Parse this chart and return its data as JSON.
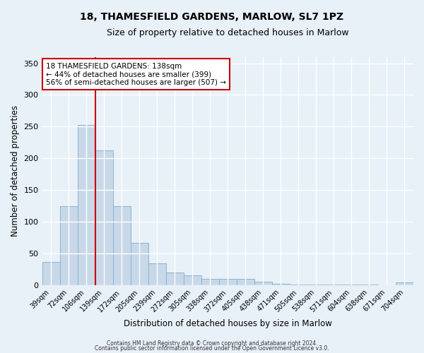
{
  "title": "18, THAMESFIELD GARDENS, MARLOW, SL7 1PZ",
  "subtitle": "Size of property relative to detached houses in Marlow",
  "xlabel": "Distribution of detached houses by size in Marlow",
  "ylabel": "Number of detached properties",
  "categories": [
    "39sqm",
    "72sqm",
    "106sqm",
    "139sqm",
    "172sqm",
    "205sqm",
    "239sqm",
    "272sqm",
    "305sqm",
    "338sqm",
    "372sqm",
    "405sqm",
    "438sqm",
    "471sqm",
    "505sqm",
    "538sqm",
    "571sqm",
    "604sqm",
    "638sqm",
    "671sqm",
    "704sqm"
  ],
  "values": [
    37,
    124,
    253,
    212,
    124,
    67,
    34,
    20,
    15,
    10,
    10,
    10,
    5,
    2,
    1,
    1,
    1,
    1,
    1,
    0,
    4
  ],
  "bar_color": "#c8d8e8",
  "bar_edge_color": "#8ab4cc",
  "property_label": "18 THAMESFIELD GARDENS: 138sqm",
  "annotation_line1": "← 44% of detached houses are smaller (399)",
  "annotation_line2": "56% of semi-detached houses are larger (507) →",
  "vline_color": "#cc0000",
  "vline_x_index": 3,
  "box_color": "#cc0000",
  "ylim": [
    0,
    360
  ],
  "yticks": [
    0,
    50,
    100,
    150,
    200,
    250,
    300,
    350
  ],
  "background_color": "#e8f0f8",
  "grid_color": "#ffffff",
  "footer1": "Contains HM Land Registry data © Crown copyright and database right 2024.",
  "footer2": "Contains public sector information licensed under the Open Government Licence v3.0."
}
